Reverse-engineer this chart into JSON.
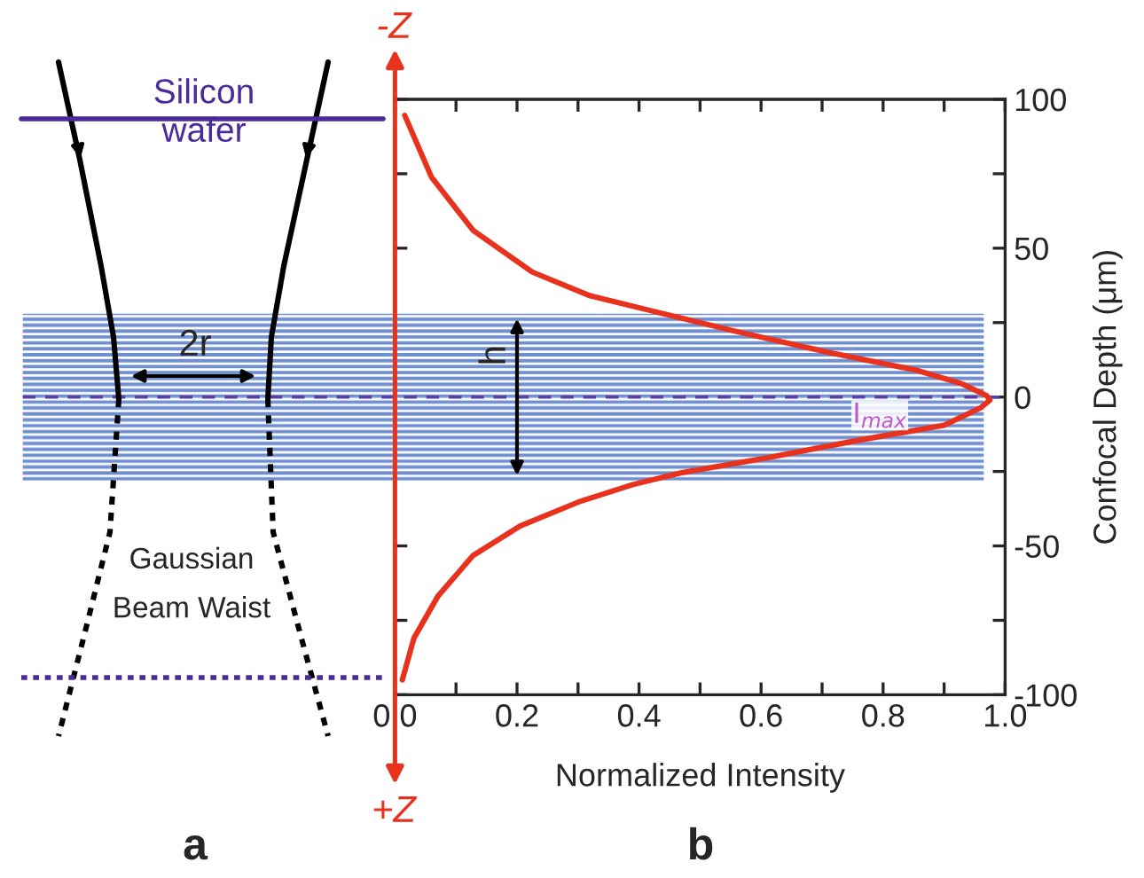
{
  "chart_data": {
    "type": "line",
    "xlabel": "Normalized Intensity",
    "ylabel": "Confocal Depth (μm)",
    "x": [
      0.016,
      0.06,
      0.128,
      0.225,
      0.32,
      0.42,
      0.56,
      0.71,
      0.855,
      0.93,
      0.97,
      0.975,
      0.96,
      0.9,
      0.76,
      0.61,
      0.47,
      0.39,
      0.3,
      0.205,
      0.128,
      0.07,
      0.031,
      0.012
    ],
    "series": [
      {
        "color": "#e8321e",
        "values": [
          94.6,
          73.8,
          56,
          42,
          34,
          29,
          22,
          15,
          9,
          4.4,
          0.4,
          -1,
          -3.6,
          -9.5,
          -14.5,
          -20.4,
          -25.4,
          -29.4,
          -35.3,
          -43.3,
          -53.2,
          -67,
          -81,
          -95
        ]
      }
    ],
    "xlim": [
      0,
      1
    ],
    "ylim": [
      -100,
      100
    ],
    "xticks": [
      {
        "value": 0,
        "label": "0.0"
      },
      {
        "value": 0.1,
        "label": null
      },
      0.2,
      {
        "value": 0.3,
        "label": null
      },
      0.4,
      {
        "value": 0.5,
        "label": null
      },
      0.6,
      {
        "value": 0.7,
        "label": null
      },
      0.8,
      {
        "value": 0.9,
        "label": null
      },
      {
        "value": 1,
        "label": "1.0"
      }
    ],
    "yticks": [
      -100,
      {
        "value": -75,
        "label": null
      },
      -50,
      {
        "value": -25,
        "label": null
      },
      0,
      {
        "value": 25,
        "label": null
      },
      50,
      {
        "value": 75,
        "label": null
      },
      100
    ],
    "bands": [
      {
        "axis": "y",
        "from": -28,
        "to": 28,
        "color": "#6f8fd0"
      }
    ],
    "ref_lines": [
      {
        "axis": "y",
        "value": 0,
        "label": "I$_{max}$",
        "color": "#5b3fa8",
        "line_style": "dashed"
      }
    ],
    "annotations": [
      "-Z",
      "+Z",
      "Silicon\nwafer",
      "2r",
      {
        "text": "h",
        "x": 0.2,
        "y": 0
      },
      "Gaussian\nBeam Waist",
      "a",
      "b"
    ],
    "marker": "none",
    "line_style": "solid",
    "grid": false,
    "legend": false
  }
}
